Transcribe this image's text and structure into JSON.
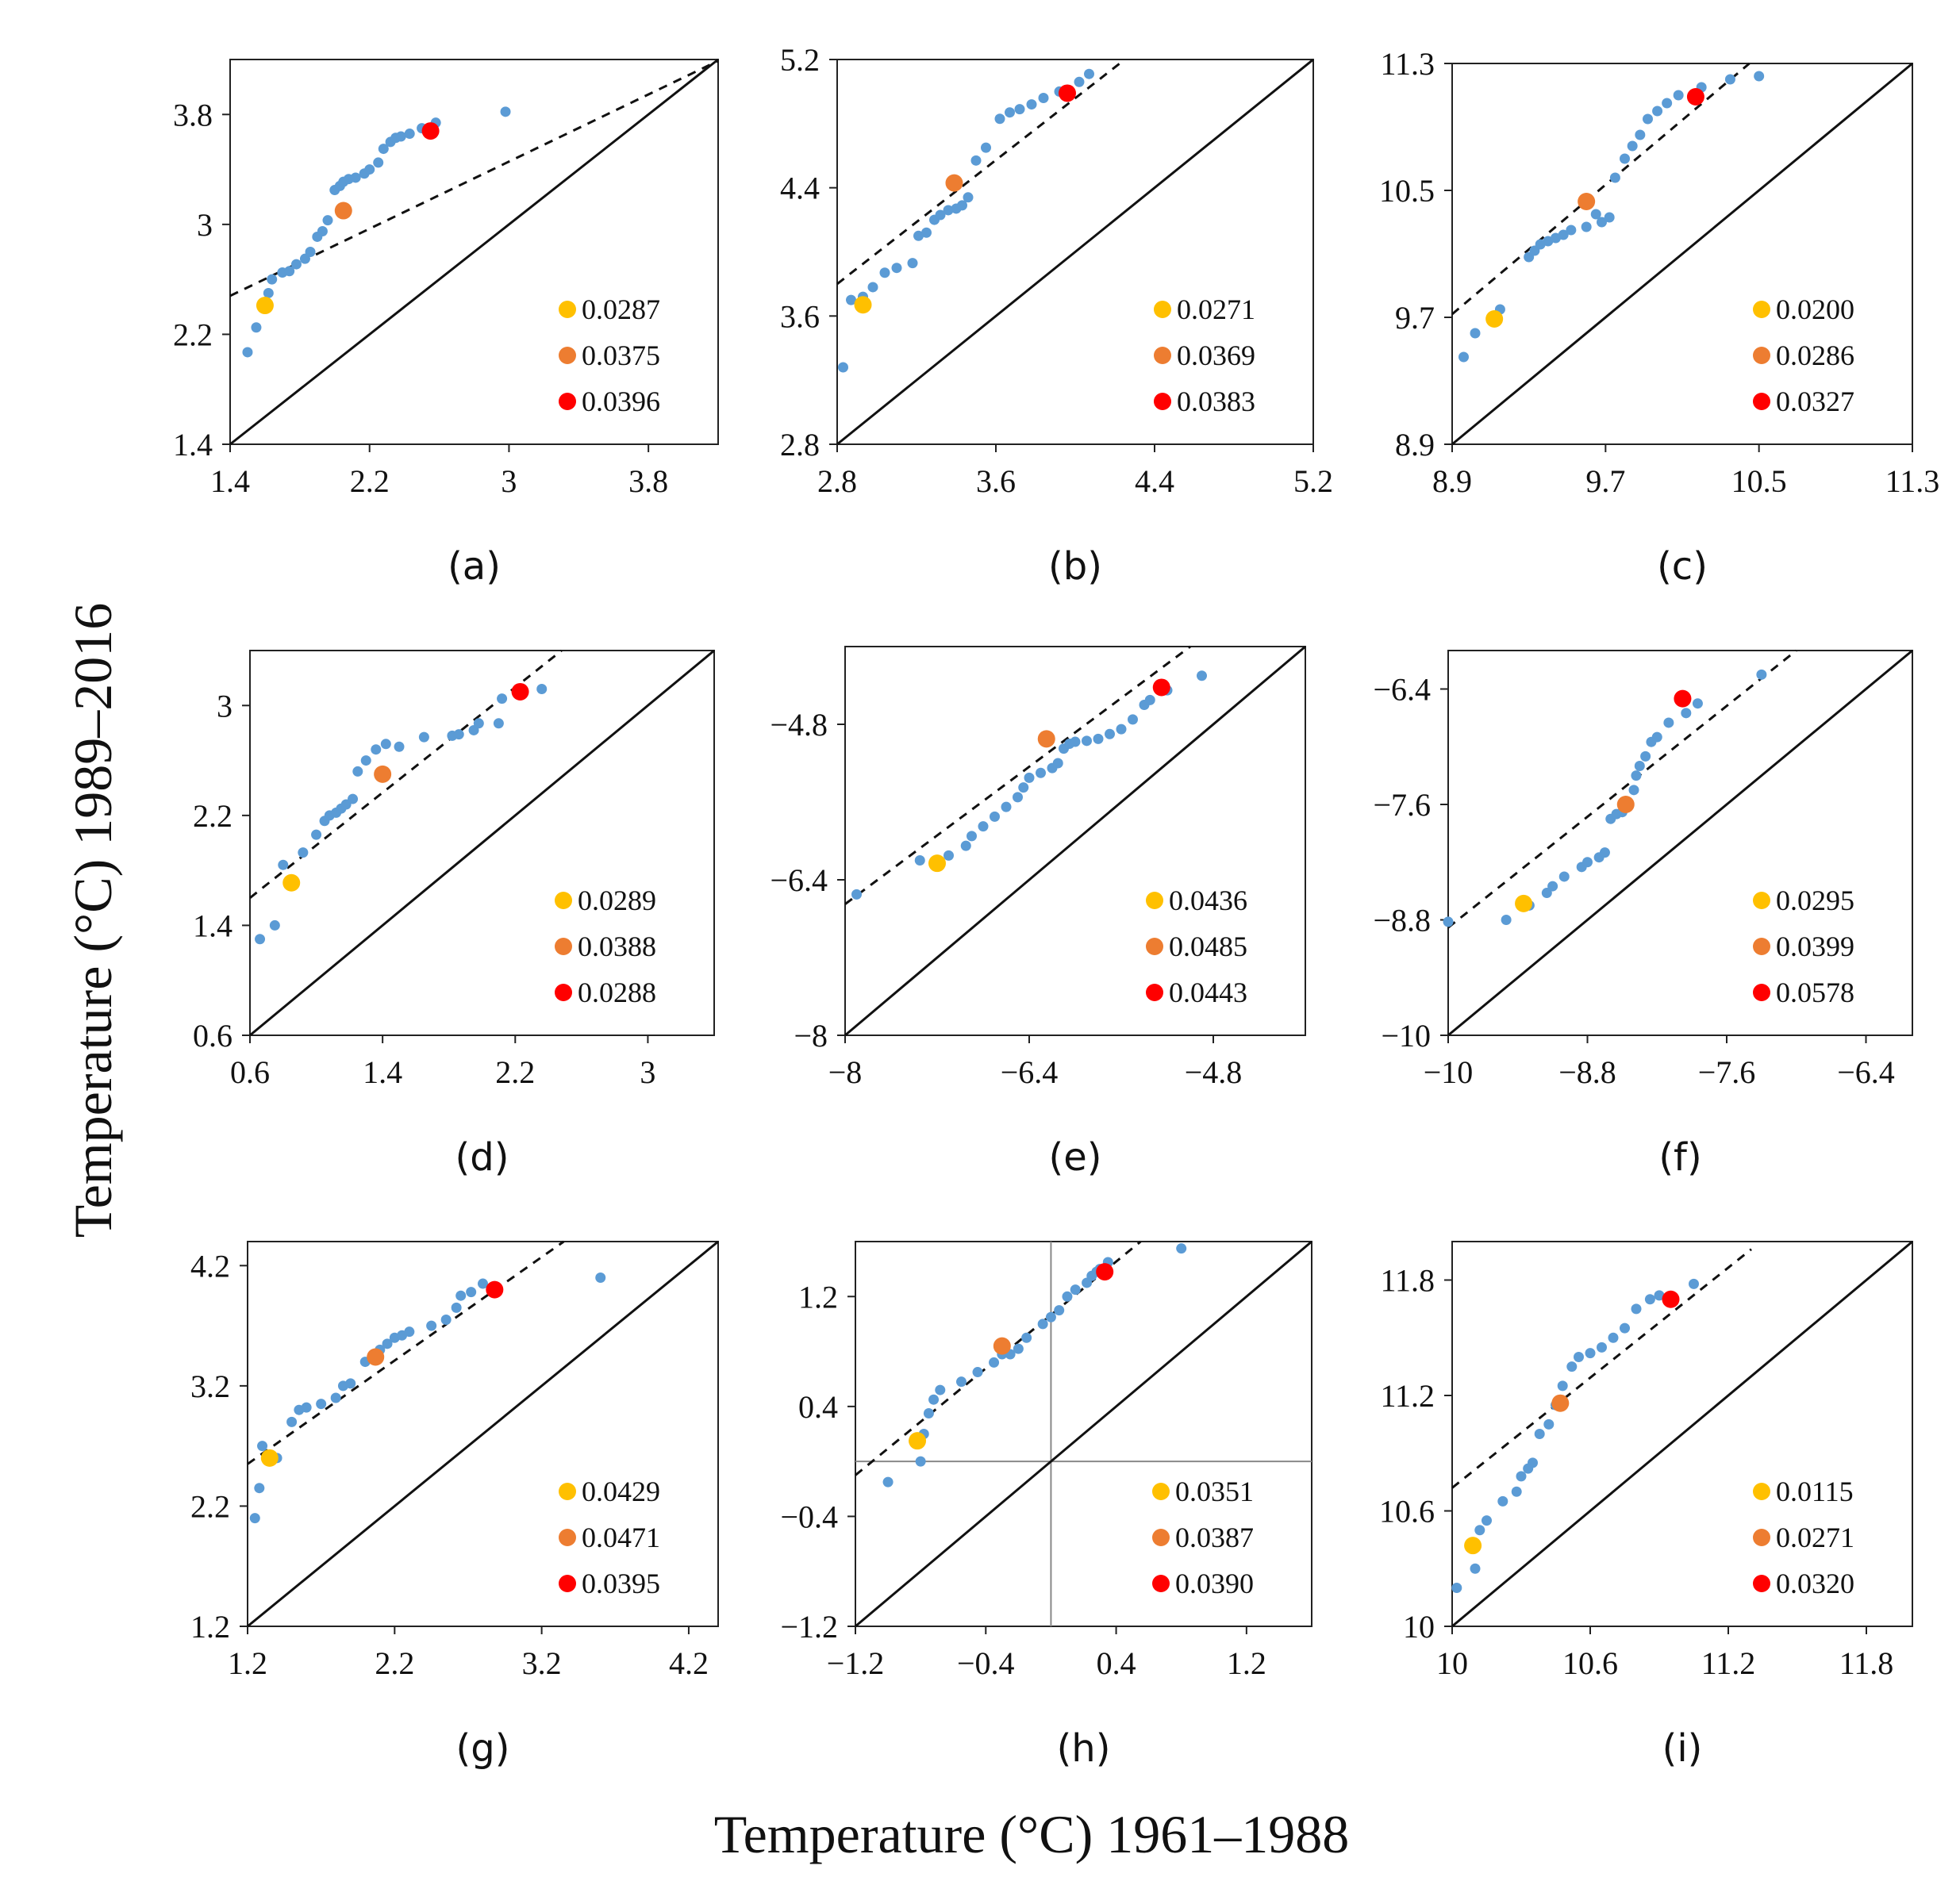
{
  "figure": {
    "xlabel": "Temperature (°C) 1961–1988",
    "ylabel": "Temperature (°C)  1989–2016"
  },
  "colors": {
    "blue": "#5b9bd5",
    "yellow": "#ffc000",
    "orange": "#ed7d31",
    "red": "#ff0000"
  },
  "chart_data": [
    {
      "id": "a",
      "label": "(a)",
      "type": "scatter",
      "xlim": [
        1.4,
        4.2
      ],
      "ylim": [
        1.4,
        4.2
      ],
      "xticks": [
        "1.4",
        "2.2",
        "3",
        "3.8"
      ],
      "yticks": [
        "1.4",
        "2.2",
        "3",
        "3.8"
      ],
      "dashed_line": {
        "x": [
          1.4,
          4.2
        ],
        "y": [
          2.48,
          4.19
        ]
      },
      "points": {
        "x": [
          1.5,
          1.55,
          1.62,
          1.64,
          1.7,
          1.74,
          1.78,
          1.83,
          1.86,
          1.9,
          1.93,
          1.96,
          2.0,
          2.03,
          2.05,
          2.08,
          2.12,
          2.17,
          2.2,
          2.25,
          2.28,
          2.32,
          2.35,
          2.38,
          2.43,
          2.5,
          2.58,
          2.98
        ],
        "y": [
          2.07,
          2.25,
          2.5,
          2.6,
          2.65,
          2.66,
          2.71,
          2.75,
          2.8,
          2.91,
          2.95,
          3.03,
          3.25,
          3.28,
          3.31,
          3.33,
          3.34,
          3.37,
          3.4,
          3.45,
          3.55,
          3.6,
          3.63,
          3.64,
          3.66,
          3.7,
          3.74,
          3.82
        ]
      },
      "highlight": [
        {
          "x": 1.6,
          "y": 2.41,
          "label": "0.0287",
          "color": "yellow"
        },
        {
          "x": 2.05,
          "y": 3.1,
          "label": "0.0375",
          "color": "orange"
        },
        {
          "x": 2.55,
          "y": 3.68,
          "label": "0.0396",
          "color": "red"
        }
      ]
    },
    {
      "id": "b",
      "label": "(b)",
      "type": "scatter",
      "xlim": [
        2.8,
        5.2
      ],
      "ylim": [
        2.8,
        5.2
      ],
      "xticks": [
        "2.8",
        "3.6",
        "4.4",
        "5.2"
      ],
      "yticks": [
        "2.8",
        "3.6",
        "4.4",
        "5.2"
      ],
      "dashed_line": {
        "x": [
          2.8,
          4.25
        ],
        "y": [
          3.8,
          5.2
        ]
      },
      "points": {
        "x": [
          2.83,
          2.87,
          2.93,
          2.98,
          3.04,
          3.1,
          3.18,
          3.21,
          3.25,
          3.29,
          3.32,
          3.36,
          3.4,
          3.43,
          3.46,
          3.5,
          3.55,
          3.62,
          3.67,
          3.72,
          3.78,
          3.84,
          3.92,
          3.96,
          4.02,
          4.07
        ],
        "y": [
          3.28,
          3.7,
          3.72,
          3.78,
          3.87,
          3.9,
          3.93,
          4.1,
          4.12,
          4.2,
          4.23,
          4.26,
          4.27,
          4.29,
          4.34,
          4.57,
          4.65,
          4.83,
          4.87,
          4.89,
          4.92,
          4.96,
          5.0,
          5.01,
          5.06,
          5.11
        ]
      },
      "highlight": [
        {
          "x": 2.93,
          "y": 3.67,
          "label": "0.0271",
          "color": "yellow"
        },
        {
          "x": 3.39,
          "y": 4.43,
          "label": "0.0369",
          "color": "orange"
        },
        {
          "x": 3.96,
          "y": 4.99,
          "label": "0.0383",
          "color": "red"
        }
      ]
    },
    {
      "id": "c",
      "label": "(c)",
      "type": "scatter",
      "xlim": [
        8.9,
        11.3
      ],
      "ylim": [
        8.9,
        11.3
      ],
      "xticks": [
        "8.9",
        "9.7",
        "10.5",
        "11.3"
      ],
      "yticks": [
        "8.9",
        "9.7",
        "10.5",
        "11.3"
      ],
      "dashed_line": {
        "x": [
          8.9,
          10.45
        ],
        "y": [
          9.72,
          11.3
        ]
      },
      "points": {
        "x": [
          8.96,
          9.02,
          9.15,
          9.3,
          9.33,
          9.36,
          9.4,
          9.44,
          9.48,
          9.52,
          9.6,
          9.65,
          9.68,
          9.72,
          9.75,
          9.8,
          9.84,
          9.88,
          9.92,
          9.97,
          10.02,
          10.08,
          10.2,
          10.35,
          10.5
        ],
        "y": [
          9.45,
          9.6,
          9.75,
          10.08,
          10.12,
          10.16,
          10.18,
          10.2,
          10.22,
          10.25,
          10.27,
          10.35,
          10.3,
          10.33,
          10.58,
          10.7,
          10.78,
          10.85,
          10.95,
          11.0,
          11.05,
          11.1,
          11.15,
          11.2,
          11.22
        ]
      },
      "highlight": [
        {
          "x": 9.12,
          "y": 9.69,
          "label": "0.0200",
          "color": "yellow"
        },
        {
          "x": 9.6,
          "y": 10.43,
          "label": "0.0286",
          "color": "orange"
        },
        {
          "x": 10.17,
          "y": 11.09,
          "label": "0.0327",
          "color": "red"
        }
      ]
    },
    {
      "id": "d",
      "label": "(d)",
      "type": "scatter",
      "xlim": [
        0.6,
        3.4
      ],
      "ylim": [
        0.6,
        3.4
      ],
      "xticks": [
        "0.6",
        "1.4",
        "2.2",
        "3"
      ],
      "yticks": [
        "0.6",
        "1.4",
        "2.2",
        "3"
      ],
      "dashed_line": {
        "x": [
          0.6,
          2.48
        ],
        "y": [
          1.6,
          3.4
        ]
      },
      "points": {
        "x": [
          0.66,
          0.75,
          0.8,
          0.92,
          1.0,
          1.05,
          1.08,
          1.12,
          1.15,
          1.18,
          1.22,
          1.25,
          1.3,
          1.36,
          1.42,
          1.5,
          1.65,
          1.82,
          1.86,
          1.95,
          1.98,
          2.1,
          2.12,
          2.36
        ],
        "y": [
          1.3,
          1.4,
          1.84,
          1.93,
          2.06,
          2.16,
          2.2,
          2.22,
          2.25,
          2.28,
          2.32,
          2.52,
          2.6,
          2.68,
          2.72,
          2.7,
          2.77,
          2.78,
          2.79,
          2.82,
          2.87,
          2.87,
          3.05,
          3.12
        ]
      },
      "highlight": [
        {
          "x": 0.85,
          "y": 1.71,
          "label": "0.0289",
          "color": "yellow"
        },
        {
          "x": 1.4,
          "y": 2.5,
          "label": "0.0388",
          "color": "orange"
        },
        {
          "x": 2.23,
          "y": 3.1,
          "label": "0.0288",
          "color": "red"
        }
      ]
    },
    {
      "id": "e",
      "label": "(e)",
      "type": "scatter",
      "xlim": [
        -8,
        -4
      ],
      "ylim": [
        -8,
        -4
      ],
      "xticks": [
        "-8",
        "-6.4",
        "-4.8"
      ],
      "yticks": [
        "-8",
        "-6.4",
        "-4.8"
      ],
      "dashed_line": {
        "x": [
          -8,
          -5.0
        ],
        "y": [
          -6.65,
          -4.0
        ]
      },
      "points": {
        "x": [
          -7.9,
          -7.35,
          -7.1,
          -6.95,
          -6.9,
          -6.8,
          -6.7,
          -6.6,
          -6.5,
          -6.45,
          -6.4,
          -6.3,
          -6.2,
          -6.15,
          -6.1,
          -6.05,
          -6.0,
          -5.9,
          -5.8,
          -5.7,
          -5.6,
          -5.5,
          -5.4,
          -5.35,
          -5.2,
          -4.9
        ],
        "y": [
          -6.55,
          -6.2,
          -6.15,
          -6.05,
          -5.95,
          -5.85,
          -5.75,
          -5.65,
          -5.55,
          -5.45,
          -5.35,
          -5.3,
          -5.25,
          -5.2,
          -5.05,
          -5.0,
          -4.98,
          -4.97,
          -4.95,
          -4.9,
          -4.85,
          -4.75,
          -4.6,
          -4.55,
          -4.45,
          -4.3
        ]
      },
      "highlight": [
        {
          "x": -7.2,
          "y": -6.23,
          "label": "0.0436",
          "color": "yellow"
        },
        {
          "x": -6.25,
          "y": -4.95,
          "label": "0.0485",
          "color": "orange"
        },
        {
          "x": -5.25,
          "y": -4.42,
          "label": "0.0443",
          "color": "red"
        }
      ]
    },
    {
      "id": "f",
      "label": "(f)",
      "type": "scatter",
      "xlim": [
        -10,
        -6
      ],
      "ylim": [
        -10,
        -6
      ],
      "xticks": [
        "-10",
        "-8.8",
        "-7.6",
        "-6.4"
      ],
      "yticks": [
        "-10",
        "-8.8",
        "-7.6",
        "-6.4"
      ],
      "dashed_line": {
        "x": [
          -10,
          -7.0
        ],
        "y": [
          -8.88,
          -6.0
        ]
      },
      "points": {
        "x": [
          -10.0,
          -9.5,
          -9.3,
          -9.15,
          -9.1,
          -9.0,
          -8.85,
          -8.8,
          -8.7,
          -8.65,
          -8.6,
          -8.55,
          -8.5,
          -8.45,
          -8.4,
          -8.38,
          -8.35,
          -8.3,
          -8.25,
          -8.2,
          -8.1,
          -7.95,
          -7.85,
          -7.3
        ],
        "y": [
          -8.82,
          -8.8,
          -8.65,
          -8.52,
          -8.45,
          -8.35,
          -8.25,
          -8.2,
          -8.15,
          -8.1,
          -7.75,
          -7.7,
          -7.68,
          -7.6,
          -7.45,
          -7.3,
          -7.2,
          -7.1,
          -6.95,
          -6.9,
          -6.75,
          -6.65,
          -6.55,
          -6.25
        ]
      },
      "highlight": [
        {
          "x": -9.35,
          "y": -8.63,
          "label": "0.0295",
          "color": "yellow"
        },
        {
          "x": -8.47,
          "y": -7.6,
          "label": "0.0399",
          "color": "orange"
        },
        {
          "x": -7.98,
          "y": -6.5,
          "label": "0.0578",
          "color": "red"
        }
      ]
    },
    {
      "id": "g",
      "label": "(g)",
      "type": "scatter",
      "xlim": [
        1.2,
        4.4
      ],
      "ylim": [
        1.2,
        4.4
      ],
      "xticks": [
        "1.2",
        "2.2",
        "3.2",
        "4.2"
      ],
      "yticks": [
        "1.2",
        "2.2",
        "3.2",
        "4.2"
      ],
      "dashed_line": {
        "x": [
          1.2,
          3.35
        ],
        "y": [
          2.55,
          4.4
        ]
      },
      "points": {
        "x": [
          1.25,
          1.28,
          1.3,
          1.4,
          1.5,
          1.55,
          1.6,
          1.7,
          1.8,
          1.85,
          1.9,
          2.0,
          2.05,
          2.1,
          2.15,
          2.2,
          2.25,
          2.3,
          2.45,
          2.55,
          2.62,
          2.65,
          2.72,
          2.8,
          3.6
        ],
        "y": [
          2.1,
          2.35,
          2.7,
          2.6,
          2.9,
          3.0,
          3.02,
          3.05,
          3.1,
          3.2,
          3.22,
          3.4,
          3.45,
          3.5,
          3.55,
          3.6,
          3.62,
          3.65,
          3.7,
          3.75,
          3.85,
          3.95,
          3.98,
          4.05,
          4.1
        ]
      },
      "highlight": [
        {
          "x": 1.35,
          "y": 2.6,
          "label": "0.0429",
          "color": "yellow"
        },
        {
          "x": 2.07,
          "y": 3.44,
          "label": "0.0471",
          "color": "orange"
        },
        {
          "x": 2.88,
          "y": 4.0,
          "label": "0.0395",
          "color": "red"
        }
      ]
    },
    {
      "id": "h",
      "label": "(h)",
      "type": "scatter",
      "xlim": [
        -1.2,
        1.6
      ],
      "ylim": [
        -1.2,
        1.6
      ],
      "xticks": [
        "-1.2",
        "-0.4",
        "0.4",
        "1.2"
      ],
      "yticks": [
        "-1.2",
        "-0.4",
        "0.4",
        "1.2"
      ],
      "zero_lines": true,
      "dashed_line": {
        "x": [
          -1.2,
          0.55
        ],
        "y": [
          -0.1,
          1.6
        ]
      },
      "points": {
        "x": [
          -1.0,
          -0.8,
          -0.78,
          -0.75,
          -0.72,
          -0.68,
          -0.55,
          -0.45,
          -0.35,
          -0.3,
          -0.25,
          -0.2,
          -0.15,
          -0.05,
          0.0,
          0.05,
          0.1,
          0.15,
          0.22,
          0.25,
          0.28,
          0.3,
          0.35,
          0.8
        ],
        "y": [
          -0.15,
          0.0,
          0.2,
          0.35,
          0.45,
          0.52,
          0.58,
          0.65,
          0.72,
          0.78,
          0.78,
          0.82,
          0.9,
          1.0,
          1.05,
          1.1,
          1.2,
          1.25,
          1.3,
          1.35,
          1.38,
          1.4,
          1.45,
          1.55
        ]
      },
      "highlight": [
        {
          "x": -0.82,
          "y": 0.15,
          "label": "0.0351",
          "color": "yellow"
        },
        {
          "x": -0.3,
          "y": 0.84,
          "label": "0.0387",
          "color": "orange"
        },
        {
          "x": 0.33,
          "y": 1.38,
          "label": "0.0390",
          "color": "red"
        }
      ]
    },
    {
      "id": "i",
      "label": "(i)",
      "type": "scatter",
      "xlim": [
        10,
        12
      ],
      "ylim": [
        10,
        12
      ],
      "xticks": [
        "10",
        "10.6",
        "11.2",
        "11.8"
      ],
      "yticks": [
        "10",
        "10.6",
        "11.2",
        "11.8"
      ],
      "dashed_line": {
        "x": [
          10,
          11.3
        ],
        "y": [
          10.72,
          11.96
        ]
      },
      "points": {
        "x": [
          10.02,
          10.1,
          10.12,
          10.15,
          10.22,
          10.28,
          10.3,
          10.33,
          10.35,
          10.38,
          10.42,
          10.45,
          10.48,
          10.52,
          10.55,
          10.6,
          10.65,
          10.7,
          10.75,
          10.8,
          10.86,
          10.9,
          11.05
        ],
        "y": [
          10.2,
          10.3,
          10.5,
          10.55,
          10.65,
          10.7,
          10.78,
          10.82,
          10.85,
          11.0,
          11.05,
          11.15,
          11.25,
          11.35,
          11.4,
          11.42,
          11.45,
          11.5,
          11.55,
          11.65,
          11.7,
          11.72,
          11.78
        ]
      },
      "highlight": [
        {
          "x": 10.09,
          "y": 10.42,
          "label": "0.0115",
          "color": "yellow"
        },
        {
          "x": 10.47,
          "y": 11.16,
          "label": "0.0271",
          "color": "orange"
        },
        {
          "x": 10.95,
          "y": 11.7,
          "label": "0.0320",
          "color": "red"
        }
      ]
    }
  ]
}
